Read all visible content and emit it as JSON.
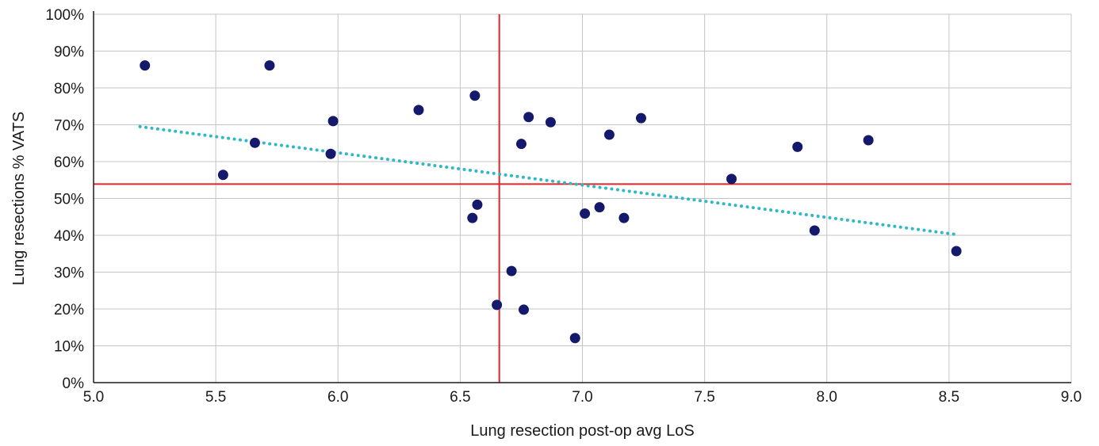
{
  "chart_data": {
    "type": "scatter",
    "title": "",
    "xlabel": "Lung resection post-op avg LoS",
    "ylabel": "Lung resections % VATS",
    "xlim": [
      5.0,
      9.0
    ],
    "ylim": [
      0,
      100
    ],
    "x_ticks": [
      5.0,
      5.5,
      6.0,
      6.5,
      7.0,
      7.5,
      8.0,
      8.5,
      9.0
    ],
    "x_tick_labels": [
      "5.0",
      "5.5",
      "6.0",
      "6.5",
      "7.0",
      "7.5",
      "8.0",
      "8.5",
      "9.0"
    ],
    "y_ticks": [
      0,
      10,
      20,
      30,
      40,
      50,
      60,
      70,
      80,
      90,
      100
    ],
    "y_tick_labels": [
      "0%",
      "10%",
      "20%",
      "30%",
      "40%",
      "50%",
      "60%",
      "70%",
      "80%",
      "90%",
      "100%"
    ],
    "grid": true,
    "legend": "none",
    "points": [
      {
        "x": 5.21,
        "y": 86.1
      },
      {
        "x": 5.72,
        "y": 86.1
      },
      {
        "x": 5.53,
        "y": 56.4
      },
      {
        "x": 5.66,
        "y": 65.1
      },
      {
        "x": 5.97,
        "y": 62.1
      },
      {
        "x": 5.98,
        "y": 71.0
      },
      {
        "x": 6.33,
        "y": 74.0
      },
      {
        "x": 6.56,
        "y": 77.9
      },
      {
        "x": 6.55,
        "y": 44.7
      },
      {
        "x": 6.57,
        "y": 48.3
      },
      {
        "x": 6.65,
        "y": 21.1
      },
      {
        "x": 6.71,
        "y": 30.3
      },
      {
        "x": 6.75,
        "y": 64.8
      },
      {
        "x": 6.76,
        "y": 19.8
      },
      {
        "x": 6.78,
        "y": 72.1
      },
      {
        "x": 6.87,
        "y": 70.7
      },
      {
        "x": 6.97,
        "y": 12.1
      },
      {
        "x": 7.01,
        "y": 45.9
      },
      {
        "x": 7.07,
        "y": 47.6
      },
      {
        "x": 7.11,
        "y": 67.3
      },
      {
        "x": 7.17,
        "y": 44.7
      },
      {
        "x": 7.24,
        "y": 71.8
      },
      {
        "x": 7.61,
        "y": 55.3
      },
      {
        "x": 7.88,
        "y": 64.0
      },
      {
        "x": 7.95,
        "y": 41.3
      },
      {
        "x": 8.17,
        "y": 65.8
      },
      {
        "x": 8.53,
        "y": 35.7
      }
    ],
    "trendline": {
      "x": [
        5.19,
        8.52
      ],
      "y": [
        69.5,
        40.3
      ]
    },
    "reference_lines": {
      "vertical_x": 6.66,
      "horizontal_y": 53.9
    },
    "colors": {
      "points": "#14196b",
      "trendline": "#2fb8c6",
      "reference_lines": "#e0262b",
      "grid": "#c4c4c4",
      "axis": "#1a1a1a"
    }
  }
}
